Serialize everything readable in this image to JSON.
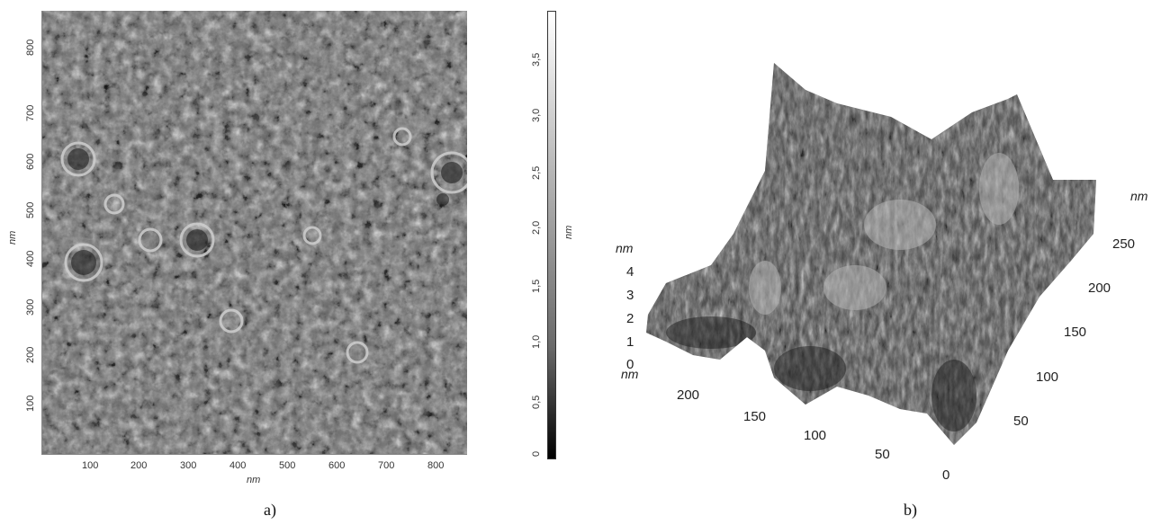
{
  "panel_a": {
    "caption": "a)",
    "x_unit": "nm",
    "y_unit": "nm",
    "x_ticks": [
      "100",
      "200",
      "300",
      "400",
      "500",
      "600",
      "700",
      "800"
    ],
    "y_ticks": [
      "100",
      "200",
      "300",
      "400",
      "500",
      "600",
      "700",
      "800"
    ],
    "colorbar": {
      "unit": "nm",
      "ticks": [
        "0",
        "0,5",
        "1,0",
        "1,5",
        "2,0",
        "2,5",
        "3,0",
        "3,5"
      ]
    }
  },
  "panel_b": {
    "caption": "b)",
    "z_unit": "nm",
    "z_ticks": [
      "4",
      "3",
      "2",
      "1",
      "0"
    ],
    "front_unit": "nm",
    "front_ticks": [
      "200",
      "150",
      "100",
      "50",
      "0"
    ],
    "right_unit": "nm",
    "right_ticks": [
      "250",
      "200",
      "150",
      "100",
      "50"
    ]
  }
}
